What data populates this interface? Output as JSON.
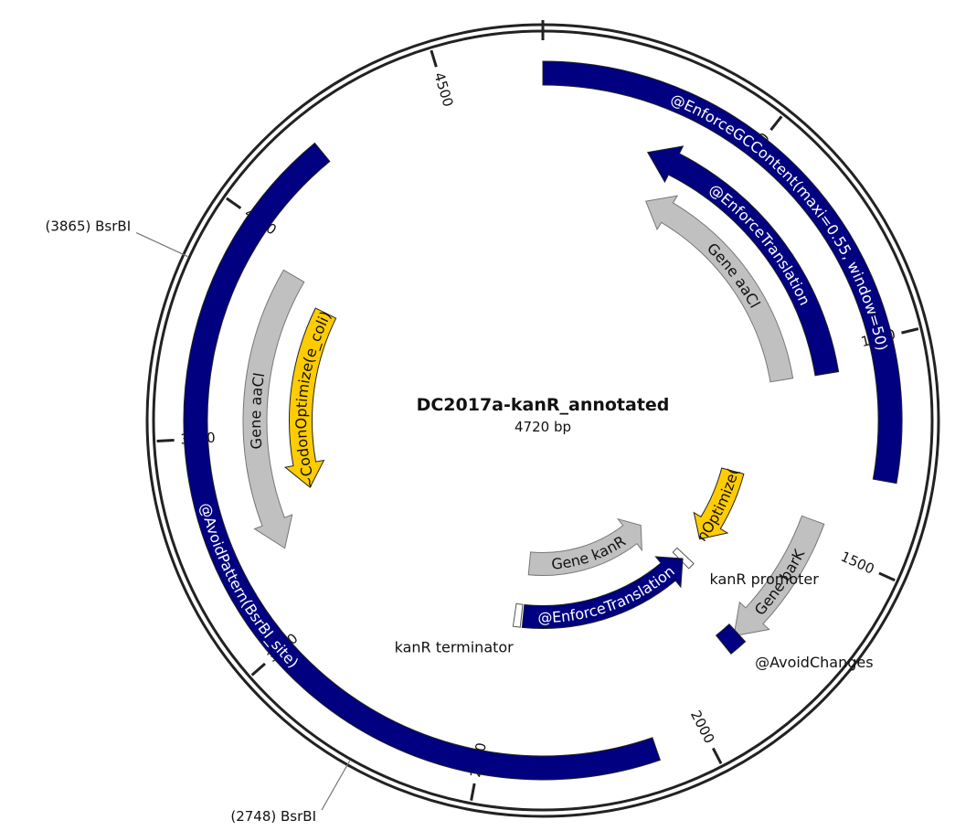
{
  "plasmid": {
    "name": "DC2017a-kanR_annotated",
    "length_label": "4720 bp",
    "length": 4720
  },
  "ticks": [
    {
      "pos": 500,
      "label": "500"
    },
    {
      "pos": 1000,
      "label": "1000"
    },
    {
      "pos": 1500,
      "label": "1500"
    },
    {
      "pos": 2000,
      "label": "2000"
    },
    {
      "pos": 2500,
      "label": "2500"
    },
    {
      "pos": 3000,
      "label": "3000"
    },
    {
      "pos": 3500,
      "label": "3500"
    },
    {
      "pos": 4000,
      "label": "4000"
    },
    {
      "pos": 4500,
      "label": "4500"
    }
  ],
  "sites": [
    {
      "pos": 3865,
      "position_label": "(3865)",
      "name": "BsrBI"
    },
    {
      "pos": 2748,
      "position_label": "(2748)",
      "name": "BsrBI"
    }
  ],
  "features": [
    {
      "id": "enforce-gc",
      "label": "@EnforceGCContent(maxi=0.55, window=50)",
      "start": 0,
      "end": 1312,
      "strand": 0,
      "color": "#000080",
      "text_color": "#ffffff",
      "level": 0
    },
    {
      "id": "enforce-translation-1",
      "label": "@EnforceTranslation",
      "start": 280,
      "end": 1057,
      "strand": -1,
      "color": "#000080",
      "text_color": "#ffffff",
      "level": 1
    },
    {
      "id": "gene-aacl-right",
      "label": "Gene aaCl",
      "start": 330,
      "end": 1054,
      "strand": -1,
      "color": "#c0c0c0",
      "text_color": "#111111",
      "level": 2
    },
    {
      "id": "codon-optimize-right",
      "label": "~CodonOptimize(e_coli)",
      "start": 1375,
      "end": 1666,
      "strand": 1,
      "color": "#ffcc00",
      "text_color": "#111111",
      "level": 3
    },
    {
      "id": "gene-bark",
      "label": "Gene barK",
      "start": 1445,
      "end": 1815,
      "strand": 1,
      "color": "#c0c0c0",
      "text_color": "#111111",
      "level": 1
    },
    {
      "id": "avoid-changes",
      "label": "@AvoidChanges",
      "start": 1803,
      "end": 1850,
      "strand": 0,
      "color": "#000080",
      "text_color": "#111111",
      "level": 1
    },
    {
      "id": "kanr-promoter",
      "label": "kanR promoter",
      "start": 1750,
      "end": 1775,
      "strand": 0,
      "color": "#ffffff",
      "text_color": "#111111",
      "level": 3
    },
    {
      "id": "enforce-translation-2",
      "label": "@EnforceTranslation",
      "start": 1765,
      "end": 2435,
      "strand": -1,
      "color": "#000080",
      "text_color": "#ffffff",
      "level": 3
    },
    {
      "id": "gene-kanr",
      "label": "Gene kanR",
      "start": 1795,
      "end": 2430,
      "strand": -1,
      "color": "#c0c0c0",
      "text_color": "#111111",
      "level": 4
    },
    {
      "id": "kanr-terminator",
      "label": "kanR terminator",
      "start": 2442,
      "end": 2468,
      "strand": 0,
      "color": "#ffffff",
      "text_color": "#111111",
      "level": 3
    },
    {
      "id": "avoid-pattern",
      "label": "@AvoidPattern(BsrBI_site)",
      "start": 2110,
      "end": 4203,
      "strand": 0,
      "color": "#000080",
      "text_color": "#ffffff",
      "level": 0
    },
    {
      "id": "gene-aacl-left",
      "label": "Gene aaCl",
      "start": 3195,
      "end": 3935,
      "strand": -1,
      "color": "#c0c0c0",
      "text_color": "#111111",
      "level": 1
    },
    {
      "id": "codon-optimize-left",
      "label": "~CodonOptimize(e_coli)",
      "start": 3330,
      "end": 3885,
      "strand": -1,
      "color": "#ffcc00",
      "text_color": "#111111",
      "level": 2
    }
  ]
}
